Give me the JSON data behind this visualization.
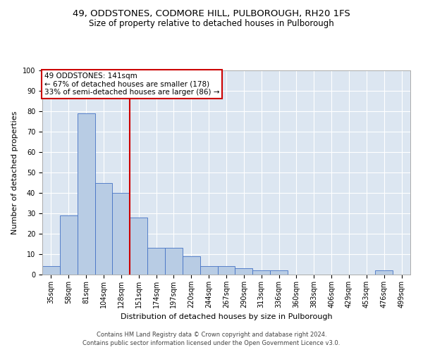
{
  "title": "49, ODDSTONES, CODMORE HILL, PULBOROUGH, RH20 1FS",
  "subtitle": "Size of property relative to detached houses in Pulborough",
  "xlabel": "Distribution of detached houses by size in Pulborough",
  "ylabel": "Number of detached properties",
  "categories": [
    "35sqm",
    "58sqm",
    "81sqm",
    "104sqm",
    "128sqm",
    "151sqm",
    "174sqm",
    "197sqm",
    "220sqm",
    "244sqm",
    "267sqm",
    "290sqm",
    "313sqm",
    "336sqm",
    "360sqm",
    "383sqm",
    "406sqm",
    "429sqm",
    "453sqm",
    "476sqm",
    "499sqm"
  ],
  "values": [
    4,
    29,
    79,
    45,
    40,
    28,
    13,
    13,
    9,
    4,
    4,
    3,
    2,
    2,
    0,
    0,
    0,
    0,
    0,
    2,
    0
  ],
  "bar_color": "#b8cce4",
  "bar_edge_color": "#4472c4",
  "reference_line_x": 4.5,
  "reference_line_label": "49 ODDSTONES: 141sqm",
  "annotation_line1": "← 67% of detached houses are smaller (178)",
  "annotation_line2": "33% of semi-detached houses are larger (86) →",
  "annotation_box_color": "#cc0000",
  "ylim": [
    0,
    100
  ],
  "yticks": [
    0,
    10,
    20,
    30,
    40,
    50,
    60,
    70,
    80,
    90,
    100
  ],
  "footer1": "Contains HM Land Registry data © Crown copyright and database right 2024.",
  "footer2": "Contains public sector information licensed under the Open Government Licence v3.0.",
  "plot_bg_color": "#dce6f1",
  "title_fontsize": 9.5,
  "subtitle_fontsize": 8.5,
  "tick_fontsize": 7,
  "ylabel_fontsize": 8,
  "xlabel_fontsize": 8,
  "footer_fontsize": 6,
  "annotation_fontsize": 7.5
}
